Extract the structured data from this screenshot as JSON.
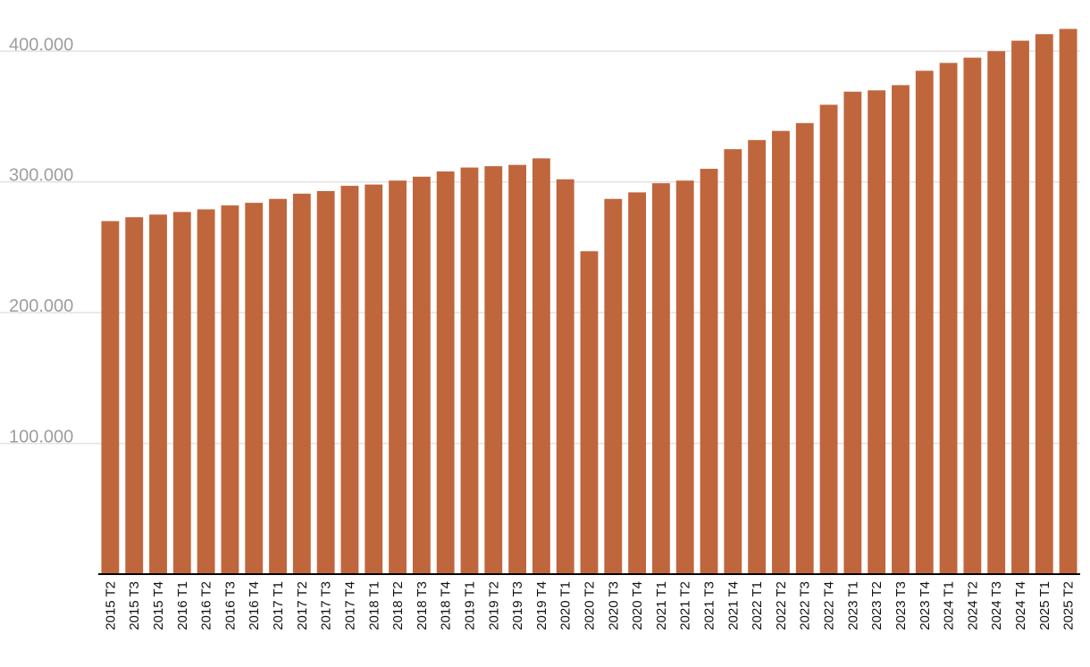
{
  "chart_data": {
    "type": "bar",
    "title": "",
    "xlabel": "",
    "ylabel": "",
    "ylim": [
      0,
      420000
    ],
    "grid": true,
    "legend": "none",
    "bar_color": "#c0663c",
    "y_ticks": [
      {
        "value": 100000,
        "label": "100.000"
      },
      {
        "value": 200000,
        "label": "200.000"
      },
      {
        "value": 300000,
        "label": "300.000"
      },
      {
        "value": 400000,
        "label": "400.000"
      }
    ],
    "categories": [
      "2015 T2",
      "2015 T3",
      "2015 T4",
      "2016 T1",
      "2016 T2",
      "2016 T3",
      "2016 T4",
      "2017 T1",
      "2017 T2",
      "2017 T3",
      "2017 T4",
      "2018 T1",
      "2018 T2",
      "2018 T3",
      "2018 T4",
      "2019 T1",
      "2019 T2",
      "2019 T3",
      "2019 T4",
      "2020 T1",
      "2020 T2",
      "2020 T3",
      "2020 T4",
      "2021 T1",
      "2021 T2",
      "2021 T3",
      "2021 T4",
      "2022 T1",
      "2022 T2",
      "2022 T3",
      "2022 T4",
      "2023 T1",
      "2023 T2",
      "2023 T3",
      "2023 T4",
      "2024 T1",
      "2024 T2",
      "2024 T3",
      "2024 T4",
      "2025 T1",
      "2025 T2"
    ],
    "values": [
      270000,
      273000,
      275000,
      277000,
      279000,
      282000,
      284000,
      287000,
      291000,
      293000,
      297000,
      298000,
      301000,
      304000,
      308000,
      311000,
      312000,
      313000,
      318000,
      302000,
      247000,
      287000,
      292000,
      299000,
      301000,
      310000,
      325000,
      332000,
      339000,
      345000,
      359000,
      369000,
      370000,
      374000,
      385000,
      391000,
      395000,
      400000,
      408000,
      413000,
      417000
    ]
  }
}
